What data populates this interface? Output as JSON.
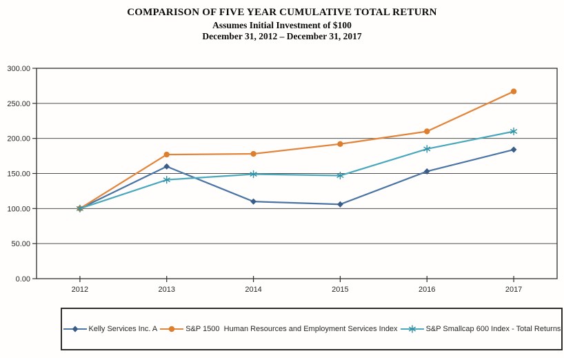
{
  "title": {
    "line1": "COMPARISON OF FIVE YEAR CUMULATIVE TOTAL RETURN",
    "line2": "Assumes Initial Investment of $100",
    "line3": "December 31, 2012 – December 31, 2017"
  },
  "chart_data": {
    "type": "line",
    "categories": [
      "2012",
      "2013",
      "2014",
      "2015",
      "2016",
      "2017"
    ],
    "series": [
      {
        "name": "Kelly Services Inc. A",
        "marker": "diamond",
        "color": "#4A74A4",
        "marker_color": "#3A5C88",
        "values": [
          100,
          160,
          110,
          106,
          153,
          184
        ]
      },
      {
        "name": "S&P 1500  Human Resources and Employment Services Index",
        "marker": "circle",
        "color": "#E2853C",
        "marker_color": "#DD7E2E",
        "values": [
          100,
          177,
          178,
          192,
          210,
          267
        ]
      },
      {
        "name": "S&P Smallcap 600 Index - Total Returns",
        "marker": "asterisk",
        "color": "#4AA8BC",
        "marker_color": "#2E8FA5",
        "values": [
          100,
          141,
          149,
          147,
          185,
          210
        ]
      }
    ],
    "title": "COMPARISON OF FIVE YEAR CUMULATIVE TOTAL RETURN",
    "subtitle": "Assumes Initial Investment of $100",
    "date_range": "December 31, 2012 – December 31, 2017",
    "xlabel": "",
    "ylabel": "",
    "ylim": [
      0,
      300
    ],
    "ytick_step": 50,
    "ytick_labels": [
      "0.00",
      "50.00",
      "100.00",
      "150.00",
      "200.00",
      "250.00",
      "300.00"
    ],
    "grid": true,
    "legend_position": "bottom"
  }
}
